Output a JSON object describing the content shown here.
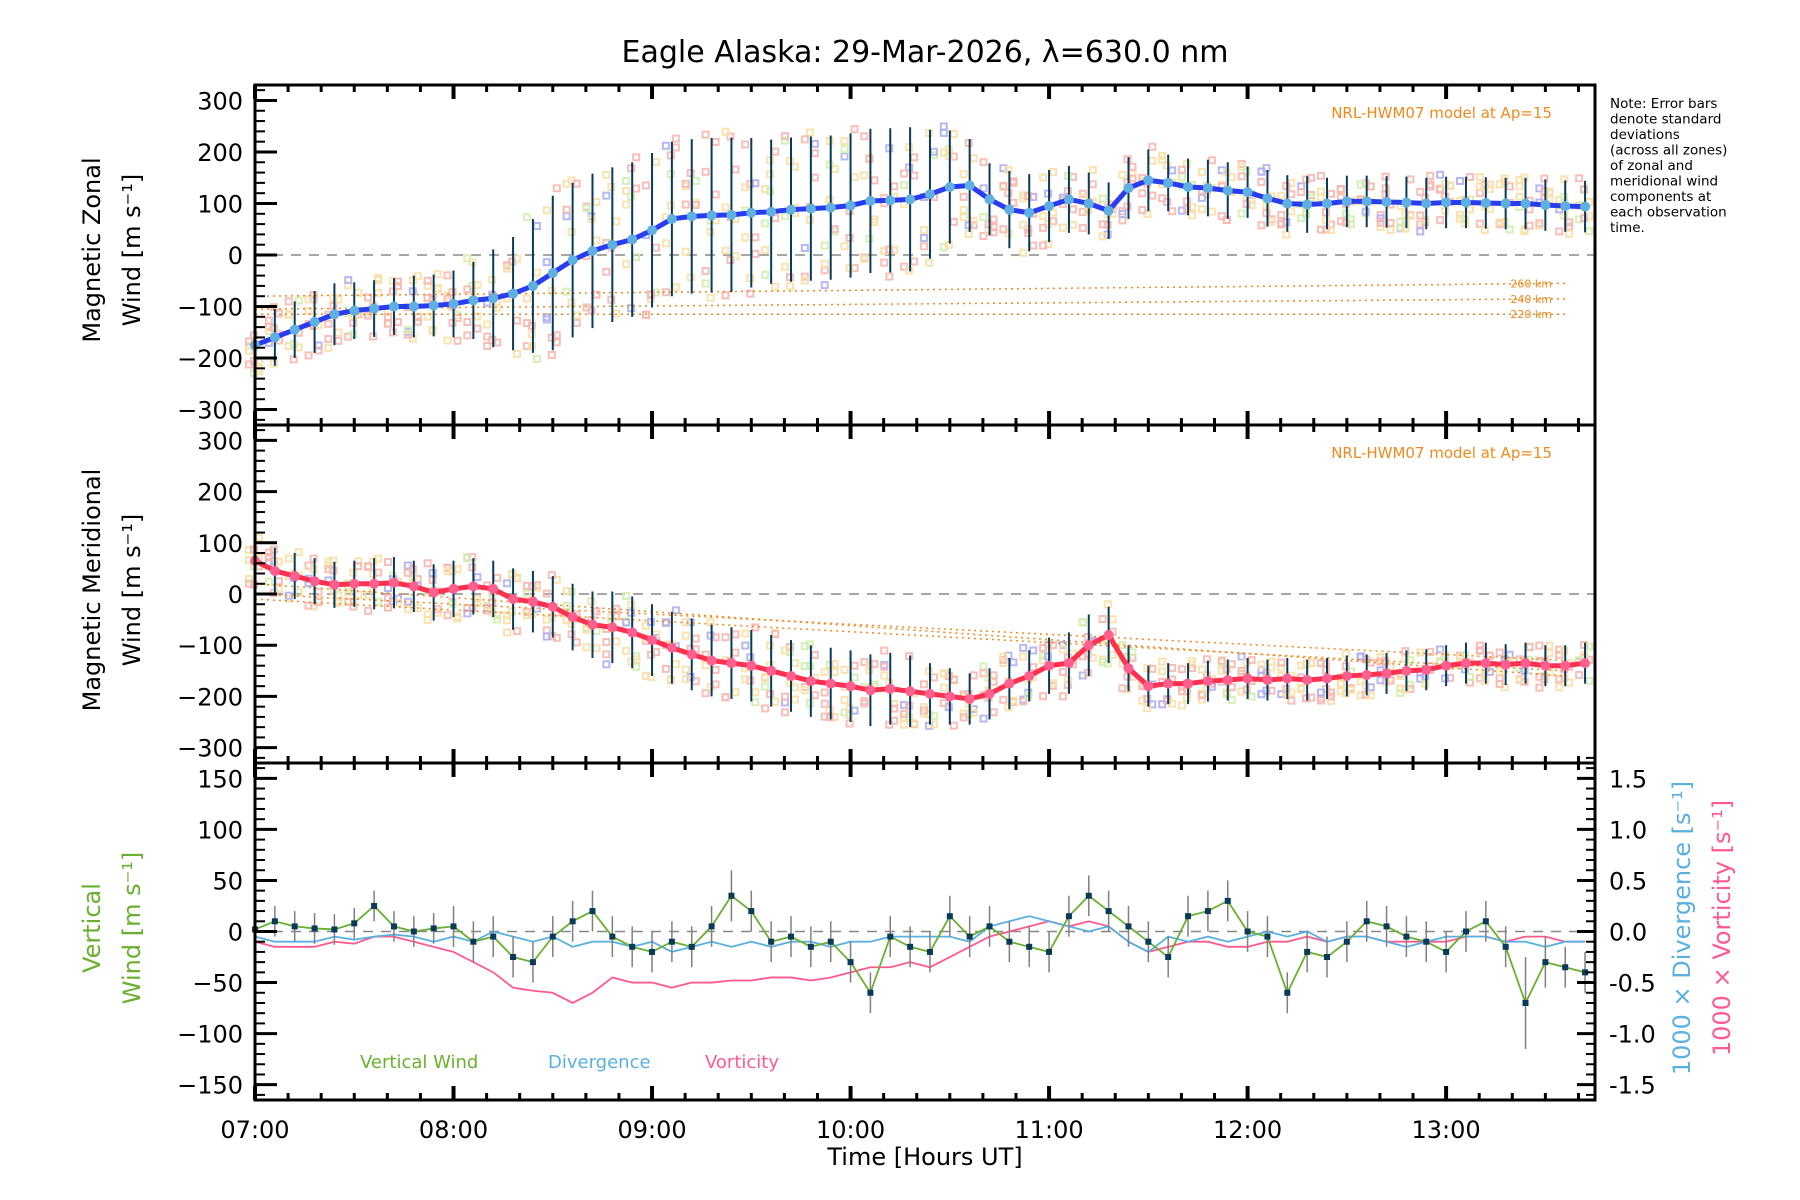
{
  "figure": {
    "title": "Eagle Alaska: 29-Mar-2026, λ=630.0 nm",
    "note_lines": [
      "Note: Error bars",
      "denote standard",
      "deviations",
      "(across all zones)",
      "of zonal and",
      "meridional wind",
      "components at",
      "each observation",
      "time."
    ],
    "xlabel": "Time [Hours UT]"
  },
  "colors": {
    "zonal_line": "#2a3cf0",
    "zonal_marker": "#5fb0e0",
    "meridional_line": "#ff3050",
    "meridional_marker": "#ff6090",
    "errorbar": "#0a3a5a",
    "model": "#f08a1e",
    "vertical": "#6ab030",
    "vertical_marker": "#0a3a5a",
    "divergence": "#5ab0e0",
    "vorticity": "#ff5a90",
    "zero_line": "#888888",
    "zone_pink": "#f6b8b0",
    "zone_yellow": "#f8e0a8",
    "zone_lavender": "#b0b0f0",
    "zone_green": "#d0f0b0"
  },
  "chart_data": [
    {
      "type": "line",
      "panel": "zonal",
      "ylabel_line1": "Magnetic Zonal",
      "ylabel_line2": "Wind [m s⁻¹]",
      "ylim": [
        -330,
        330
      ],
      "yticks": [
        -300,
        -200,
        -100,
        0,
        100,
        200,
        300
      ],
      "xlim": [
        7.0,
        13.75
      ],
      "model_label": "NRL-HWM07 model at Ap=15",
      "model_altitudes": [
        "260 km",
        "240 km",
        "220 km"
      ],
      "x": [
        7.0,
        7.1,
        7.2,
        7.3,
        7.4,
        7.5,
        7.6,
        7.7,
        7.8,
        7.9,
        8.0,
        8.1,
        8.2,
        8.3,
        8.4,
        8.5,
        8.6,
        8.7,
        8.8,
        8.9,
        9.0,
        9.1,
        9.2,
        9.3,
        9.4,
        9.5,
        9.6,
        9.7,
        9.8,
        9.9,
        10.0,
        10.1,
        10.2,
        10.3,
        10.4,
        10.5,
        10.6,
        10.7,
        10.8,
        10.9,
        11.0,
        11.1,
        11.2,
        11.3,
        11.4,
        11.5,
        11.6,
        11.7,
        11.8,
        11.9,
        12.0,
        12.1,
        12.2,
        12.3,
        12.4,
        12.5,
        12.6,
        12.7,
        12.8,
        12.9,
        13.0,
        13.1,
        13.2,
        13.3,
        13.4,
        13.5,
        13.6,
        13.7
      ],
      "series": [
        {
          "name": "Zonal wind",
          "values": [
            -175,
            -160,
            -145,
            -130,
            -115,
            -108,
            -104,
            -100,
            -100,
            -98,
            -95,
            -88,
            -84,
            -75,
            -60,
            -35,
            -10,
            8,
            20,
            30,
            48,
            70,
            75,
            77,
            78,
            82,
            84,
            88,
            90,
            92,
            96,
            105,
            106,
            108,
            118,
            132,
            135,
            108,
            88,
            82,
            95,
            108,
            100,
            86,
            130,
            145,
            140,
            132,
            130,
            125,
            122,
            110,
            100,
            98,
            100,
            104,
            104,
            103,
            102,
            100,
            102,
            102,
            101,
            100,
            100,
            97,
            95,
            94
          ]
        },
        {
          "name": "Error (±1σ)",
          "values": [
            55,
            55,
            55,
            60,
            60,
            55,
            55,
            55,
            60,
            60,
            65,
            75,
            95,
            110,
            130,
            150,
            150,
            150,
            150,
            150,
            150,
            150,
            150,
            150,
            150,
            145,
            140,
            140,
            140,
            140,
            140,
            140,
            140,
            140,
            125,
            110,
            90,
            70,
            75,
            75,
            70,
            65,
            60,
            55,
            60,
            60,
            55,
            55,
            55,
            55,
            50,
            55,
            55,
            55,
            50,
            50,
            50,
            50,
            50,
            50,
            50,
            50,
            50,
            50,
            50,
            50,
            50,
            50
          ]
        }
      ],
      "model_series": [
        {
          "name": "260 km",
          "values_start": -80,
          "values_end": -55
        },
        {
          "name": "240 km",
          "values_start": -105,
          "values_end": -85
        },
        {
          "name": "220 km",
          "values_start": -115,
          "values_end": -115
        }
      ]
    },
    {
      "type": "line",
      "panel": "meridional",
      "ylabel_line1": "Magnetic Meridional",
      "ylabel_line2": "Wind [m s⁻¹]",
      "ylim": [
        -330,
        330
      ],
      "yticks": [
        -300,
        -200,
        -100,
        0,
        100,
        200,
        300
      ],
      "xlim": [
        7.0,
        13.75
      ],
      "model_label": "NRL-HWM07 model at Ap=15",
      "x": [
        7.0,
        7.1,
        7.2,
        7.3,
        7.4,
        7.5,
        7.6,
        7.7,
        7.8,
        7.9,
        8.0,
        8.1,
        8.2,
        8.3,
        8.4,
        8.5,
        8.6,
        8.7,
        8.8,
        8.9,
        9.0,
        9.1,
        9.2,
        9.3,
        9.4,
        9.5,
        9.6,
        9.7,
        9.8,
        9.9,
        10.0,
        10.1,
        10.2,
        10.3,
        10.4,
        10.5,
        10.6,
        10.7,
        10.8,
        10.9,
        11.0,
        11.1,
        11.2,
        11.3,
        11.4,
        11.5,
        11.6,
        11.7,
        11.8,
        11.9,
        12.0,
        12.1,
        12.2,
        12.3,
        12.4,
        12.5,
        12.6,
        12.7,
        12.8,
        12.9,
        13.0,
        13.1,
        13.2,
        13.3,
        13.4,
        13.5,
        13.6,
        13.7
      ],
      "series": [
        {
          "name": "Meridional wind",
          "values": [
            65,
            45,
            35,
            25,
            18,
            20,
            20,
            22,
            15,
            3,
            10,
            15,
            10,
            -10,
            -15,
            -25,
            -45,
            -60,
            -65,
            -75,
            -90,
            -105,
            -118,
            -130,
            -135,
            -140,
            -150,
            -160,
            -170,
            -175,
            -180,
            -188,
            -185,
            -190,
            -195,
            -200,
            -205,
            -195,
            -175,
            -160,
            -140,
            -135,
            -100,
            -80,
            -145,
            -180,
            -175,
            -175,
            -170,
            -168,
            -165,
            -168,
            -165,
            -168,
            -165,
            -160,
            -158,
            -155,
            -150,
            -148,
            -140,
            -135,
            -135,
            -138,
            -135,
            -140,
            -140,
            -135
          ]
        },
        {
          "name": "Error (±1σ)",
          "values": [
            45,
            45,
            45,
            45,
            45,
            45,
            50,
            50,
            50,
            55,
            55,
            55,
            55,
            60,
            60,
            60,
            65,
            65,
            70,
            70,
            70,
            70,
            70,
            70,
            70,
            70,
            70,
            70,
            70,
            70,
            70,
            70,
            70,
            70,
            60,
            55,
            50,
            50,
            50,
            50,
            55,
            60,
            60,
            55,
            45,
            40,
            40,
            40,
            40,
            40,
            40,
            40,
            40,
            40,
            40,
            40,
            40,
            40,
            40,
            40,
            40,
            40,
            40,
            40,
            40,
            40,
            40,
            40
          ]
        }
      ],
      "model_series": [
        {
          "name": "260 km",
          "values_start": 20,
          "values_end": -160
        },
        {
          "name": "240 km",
          "values_start": 0,
          "values_end": -130
        },
        {
          "name": "220 km",
          "values_start": -10,
          "values_end": -150
        }
      ]
    },
    {
      "type": "line",
      "panel": "vertical",
      "ylabel_line1": "Vertical",
      "ylabel_line2": "Wind [m s⁻¹]",
      "y2label_line1": "1000 × Divergence [s⁻¹]",
      "y2label_line2": "1000 × Vorticity [s⁻¹]",
      "ylim": [
        -165,
        165
      ],
      "yticks": [
        -150,
        -100,
        -50,
        0,
        50,
        100,
        150
      ],
      "y2lim": [
        -1.65,
        1.65
      ],
      "y2ticks": [
        -1.5,
        -1.0,
        -0.5,
        0.0,
        0.5,
        1.0,
        1.5
      ],
      "xlim": [
        7.0,
        13.75
      ],
      "xticks": [
        "07:00",
        "08:00",
        "09:00",
        "10:00",
        "11:00",
        "12:00",
        "13:00"
      ],
      "legend": [
        "Vertical Wind",
        "Divergence",
        "Vorticity"
      ],
      "legend_position": "bottom-left",
      "x": [
        7.0,
        7.1,
        7.2,
        7.3,
        7.4,
        7.5,
        7.6,
        7.7,
        7.8,
        7.9,
        8.0,
        8.1,
        8.2,
        8.3,
        8.4,
        8.5,
        8.6,
        8.7,
        8.8,
        8.9,
        9.0,
        9.1,
        9.2,
        9.3,
        9.4,
        9.5,
        9.6,
        9.7,
        9.8,
        9.9,
        10.0,
        10.1,
        10.2,
        10.3,
        10.4,
        10.5,
        10.6,
        10.7,
        10.8,
        10.9,
        11.0,
        11.1,
        11.2,
        11.3,
        11.4,
        11.5,
        11.6,
        11.7,
        11.8,
        11.9,
        12.0,
        12.1,
        12.2,
        12.3,
        12.4,
        12.5,
        12.6,
        12.7,
        12.8,
        12.9,
        13.0,
        13.1,
        13.2,
        13.3,
        13.4,
        13.5,
        13.6,
        13.7
      ],
      "series": [
        {
          "name": "Vertical Wind",
          "axis": "left",
          "values": [
            2,
            10,
            5,
            3,
            2,
            8,
            25,
            5,
            0,
            3,
            5,
            -10,
            -5,
            -25,
            -30,
            -5,
            10,
            20,
            -5,
            -15,
            -20,
            -10,
            -15,
            5,
            35,
            20,
            -10,
            -5,
            -15,
            -10,
            -30,
            -60,
            -5,
            -15,
            -20,
            15,
            -5,
            5,
            -10,
            -15,
            -20,
            15,
            35,
            20,
            5,
            -10,
            -25,
            15,
            20,
            30,
            0,
            -5,
            -60,
            -20,
            -25,
            -10,
            10,
            5,
            -5,
            -10,
            -20,
            0,
            10,
            -15,
            -70,
            -30,
            -35,
            -40
          ]
        },
        {
          "name": "Error (±1σ)",
          "axis": "left",
          "values": [
            15,
            15,
            15,
            15,
            15,
            15,
            15,
            15,
            15,
            15,
            20,
            20,
            20,
            20,
            20,
            20,
            20,
            20,
            20,
            20,
            20,
            20,
            20,
            20,
            25,
            20,
            20,
            20,
            20,
            20,
            20,
            20,
            20,
            20,
            20,
            20,
            20,
            20,
            20,
            20,
            20,
            20,
            20,
            20,
            20,
            20,
            20,
            20,
            20,
            20,
            20,
            20,
            20,
            20,
            20,
            20,
            20,
            20,
            20,
            20,
            20,
            20,
            20,
            20,
            45,
            25,
            20,
            20
          ]
        },
        {
          "name": "Divergence",
          "axis": "right",
          "values": [
            -0.05,
            -0.1,
            -0.1,
            -0.1,
            -0.05,
            -0.08,
            -0.05,
            -0.03,
            -0.05,
            -0.1,
            -0.05,
            -0.1,
            0.0,
            -0.05,
            -0.1,
            -0.05,
            -0.15,
            -0.1,
            -0.1,
            -0.15,
            -0.1,
            -0.2,
            -0.15,
            -0.1,
            -0.15,
            -0.1,
            -0.15,
            -0.1,
            -0.1,
            -0.15,
            -0.1,
            -0.1,
            -0.05,
            -0.05,
            -0.05,
            -0.05,
            -0.1,
            0.05,
            0.1,
            0.15,
            0.1,
            0.05,
            0.0,
            0.05,
            -0.1,
            -0.2,
            -0.05,
            -0.1,
            -0.05,
            -0.1,
            -0.05,
            0.0,
            -0.05,
            0.0,
            -0.1,
            -0.05,
            -0.05,
            -0.1,
            -0.15,
            -0.1,
            -0.05,
            -0.05,
            -0.05,
            -0.1,
            -0.1,
            -0.15,
            -0.1,
            -0.1
          ]
        },
        {
          "name": "Vorticity",
          "axis": "right",
          "values": [
            -0.1,
            -0.15,
            -0.15,
            -0.15,
            -0.1,
            -0.12,
            -0.05,
            -0.05,
            -0.1,
            -0.15,
            -0.2,
            -0.3,
            -0.4,
            -0.55,
            -0.58,
            -0.6,
            -0.7,
            -0.6,
            -0.45,
            -0.5,
            -0.5,
            -0.55,
            -0.5,
            -0.5,
            -0.48,
            -0.48,
            -0.45,
            -0.45,
            -0.48,
            -0.45,
            -0.4,
            -0.35,
            -0.35,
            -0.3,
            -0.35,
            -0.25,
            -0.15,
            -0.05,
            0.0,
            0.05,
            0.1,
            0.05,
            0.1,
            0.05,
            -0.1,
            -0.2,
            -0.15,
            -0.1,
            -0.1,
            -0.15,
            -0.15,
            -0.1,
            -0.1,
            -0.05,
            -0.1,
            -0.05,
            -0.05,
            -0.1,
            -0.1,
            -0.1,
            -0.1,
            -0.05,
            -0.05,
            -0.1,
            -0.05,
            -0.05,
            -0.1,
            -0.1
          ]
        }
      ]
    }
  ]
}
